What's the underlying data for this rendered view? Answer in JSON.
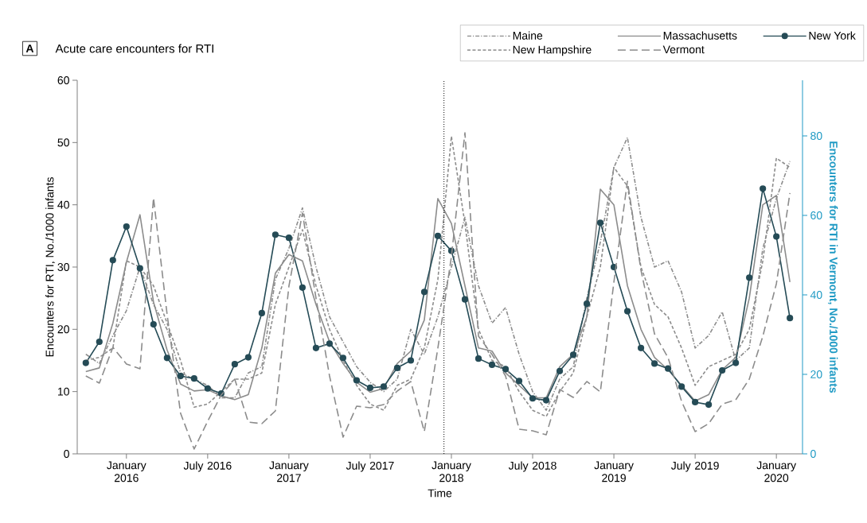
{
  "chart_data": {
    "type": "line",
    "title": "Acute care encounters for RTI",
    "annotations": [
      "A"
    ],
    "xlabel": "Time",
    "ylabel": "Encounters for RTI, No./1000 infants",
    "y2label": "Encounters for RTI in Vermont, No./1000 infants",
    "x": [
      "2015-10",
      "2015-11",
      "2015-12",
      "2016-01",
      "2016-02",
      "2016-03",
      "2016-04",
      "2016-05",
      "2016-06",
      "2016-07",
      "2016-08",
      "2016-09",
      "2016-10",
      "2016-11",
      "2016-12",
      "2017-01",
      "2017-02",
      "2017-03",
      "2017-04",
      "2017-05",
      "2017-06",
      "2017-07",
      "2017-08",
      "2017-09",
      "2017-10",
      "2017-11",
      "2017-12",
      "2018-01",
      "2018-02",
      "2018-03",
      "2018-04",
      "2018-05",
      "2018-06",
      "2018-07",
      "2018-08",
      "2018-09",
      "2018-10",
      "2018-11",
      "2018-12",
      "2019-01",
      "2019-02",
      "2019-03",
      "2019-04",
      "2019-05",
      "2019-06",
      "2019-07",
      "2019-08",
      "2019-09",
      "2019-10",
      "2019-11",
      "2019-12",
      "2020-01",
      "2020-02"
    ],
    "xlim": [
      "2015-09-12",
      "2020-02-28"
    ],
    "xticks": [
      {
        "value": "2016-01",
        "label": "January 2016"
      },
      {
        "value": "2016-07",
        "label": "July 2016"
      },
      {
        "value": "2017-01",
        "label": "January 2017"
      },
      {
        "value": "2017-07",
        "label": "July 2017"
      },
      {
        "value": "2018-01",
        "label": "January 2018"
      },
      {
        "value": "2018-07",
        "label": "July 2018"
      },
      {
        "value": "2019-01",
        "label": "January 2019"
      },
      {
        "value": "2019-07",
        "label": "July 2019"
      },
      {
        "value": "2020-01",
        "label": "January 2020"
      }
    ],
    "ylim": [
      0,
      60
    ],
    "yticks": [
      0,
      10,
      20,
      30,
      40,
      50,
      60
    ],
    "y2lim": [
      0,
      94
    ],
    "y2ticks": [
      0,
      20,
      40,
      60,
      80
    ],
    "legend": "top right",
    "ref_lines": [
      {
        "axis": "x",
        "value": "2017-12-15",
        "color": "#000000",
        "line_style": "dotted"
      }
    ],
    "series": [
      {
        "name": "Maine",
        "color": "#8c8c8c",
        "line_style": "dashdot",
        "marker": "none",
        "values": [
          16,
          14.5,
          19,
          23,
          30,
          24,
          20,
          13,
          12,
          11,
          9,
          9,
          13,
          14,
          28,
          33,
          39.5,
          30,
          22,
          18,
          14,
          11.5,
          10,
          12,
          20,
          16,
          22,
          30,
          38,
          27,
          21,
          23.5,
          16,
          10,
          7,
          12,
          14,
          25,
          34,
          46,
          50.8,
          38,
          30,
          31,
          26,
          17,
          19,
          22.8,
          15,
          17,
          33,
          41,
          47
        ]
      },
      {
        "name": "Massachusetts",
        "color": "#8c8c8c",
        "line_style": "solid",
        "marker": "none",
        "values": [
          13.2,
          13.8,
          21.0,
          30.8,
          38.4,
          24.4,
          16.7,
          11.2,
          10.1,
          10.3,
          9.3,
          8.7,
          9.5,
          17.0,
          29.0,
          32.0,
          31.0,
          24.0,
          18.0,
          14.5,
          11.5,
          9.9,
          10.5,
          14.5,
          16.5,
          21.5,
          41.0,
          37.0,
          27.0,
          17.0,
          16.5,
          13.0,
          11.0,
          9.0,
          9.0,
          14.0,
          16.0,
          22.0,
          42.5,
          40.0,
          27.0,
          20.0,
          15.5,
          13.5,
          11.0,
          8.5,
          9.5,
          13.5,
          15.5,
          25.0,
          40.0,
          41.5,
          27.6
        ]
      },
      {
        "name": "New York",
        "color": "#254b56",
        "line_style": "solid",
        "marker": "circle",
        "values": [
          14.6,
          18.0,
          31.1,
          36.5,
          29.8,
          20.8,
          15.4,
          12.5,
          12.1,
          10.5,
          9.7,
          14.4,
          15.5,
          22.6,
          35.2,
          34.7,
          26.7,
          17.0,
          17.7,
          15.4,
          11.8,
          10.6,
          10.8,
          13.8,
          15.0,
          26.0,
          35.0,
          32.6,
          24.8,
          15.3,
          14.3,
          13.6,
          11.7,
          8.9,
          8.6,
          13.3,
          15.9,
          24.1,
          37.1,
          30.0,
          22.9,
          17.0,
          14.5,
          13.7,
          10.8,
          8.3,
          7.9,
          13.4,
          14.6,
          28.3,
          42.6,
          34.9,
          21.8
        ]
      },
      {
        "name": "New Hampshire",
        "color": "#8c8c8c",
        "line_style": "dotted",
        "marker": "none",
        "values": [
          15,
          15.5,
          17,
          31,
          30,
          27,
          21,
          15,
          7.5,
          8,
          10,
          12,
          12,
          13,
          24,
          30,
          36,
          27,
          20,
          15,
          11,
          8,
          7,
          11,
          12,
          17,
          28,
          51,
          37,
          20,
          15,
          14,
          10,
          7,
          6,
          10,
          13,
          22,
          30,
          46,
          43,
          30,
          24,
          22,
          17,
          11,
          14,
          15,
          16,
          20,
          31,
          47.5,
          46
        ]
      },
      {
        "name": "Vermont",
        "color": "#8c8c8c",
        "line_style": "dashed",
        "marker": "none",
        "axis": "y2",
        "values": [
          19.6,
          17.8,
          26.8,
          22.6,
          21.4,
          64.4,
          35.2,
          10.2,
          1.2,
          8.2,
          14.8,
          18.8,
          8.0,
          7.6,
          10.8,
          42.2,
          60.6,
          39.2,
          19.6,
          4.2,
          12.0,
          11.6,
          12.4,
          15.8,
          18.2,
          5.6,
          26.6,
          49.6,
          80.8,
          29.6,
          25.0,
          19.6,
          6.2,
          5.8,
          4.8,
          16.2,
          14.2,
          18.2,
          15.6,
          43.2,
          68.6,
          46.2,
          30.2,
          24.2,
          13.2,
          5.6,
          7.6,
          12.5,
          13.6,
          18.8,
          29.6,
          42.8,
          65.6
        ]
      }
    ]
  }
}
